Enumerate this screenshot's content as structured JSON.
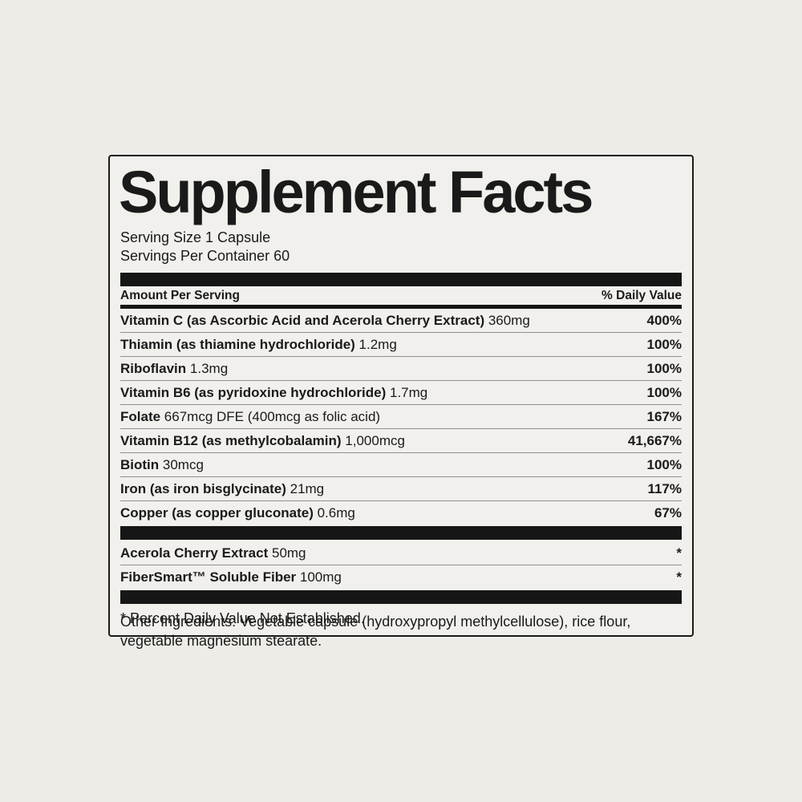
{
  "colors": {
    "background": "#edece7",
    "panel": "#f1f0ec",
    "ink": "#161616",
    "hairline": "#8f8f8f"
  },
  "label": {
    "title": "Supplement Facts",
    "serving_size": "Serving Size 1 Capsule",
    "servings_per_container": "Servings Per Container 60",
    "header": {
      "left": "Amount Per Serving",
      "right": "% Daily Value"
    },
    "nutrients": [
      {
        "name": "Vitamin C (as Ascorbic Acid and Acerola Cherry Extract)",
        "amount": "360mg",
        "dv": "400%"
      },
      {
        "name": "Thiamin (as thiamine hydrochloride)",
        "amount": "1.2mg",
        "dv": "100%"
      },
      {
        "name": "Riboflavin",
        "amount": "1.3mg",
        "dv": "100%"
      },
      {
        "name": "Vitamin B6 (as pyridoxine hydrochloride)",
        "amount": "1.7mg",
        "dv": "100%"
      },
      {
        "name": "Folate",
        "amount": "667mcg DFE (400mcg as folic acid)",
        "dv": "167%"
      },
      {
        "name": "Vitamin B12 (as methylcobalamin)",
        "amount": "1,000mcg",
        "dv": "41,667%"
      },
      {
        "name": "Biotin",
        "amount": "30mcg",
        "dv": "100%"
      },
      {
        "name": "Iron (as iron bisglycinate)",
        "amount": "21mg",
        "dv": "117%"
      },
      {
        "name": "Copper (as copper gluconate)",
        "amount": "0.6mg",
        "dv": "67%"
      }
    ],
    "proprietary": [
      {
        "name": "Acerola Cherry Extract",
        "amount": "50mg",
        "dv": "*"
      },
      {
        "name": "FiberSmart™ Soluble Fiber",
        "amount": "100mg",
        "dv": "*"
      }
    ],
    "footnote": "* Percent Daily Value Not Established."
  },
  "other_ingredients": "Other Ingredients: Vegetable capsule (hydroxypropyl methylcellulose), rice flour, vegetable magnesium stearate."
}
